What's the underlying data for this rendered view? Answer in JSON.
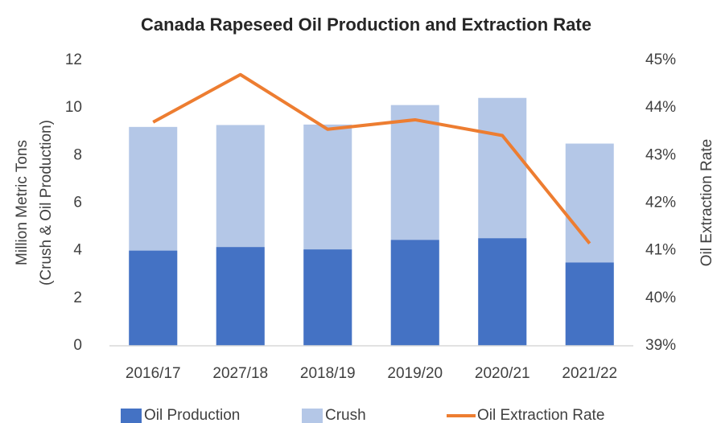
{
  "chart_data": {
    "type": "bar",
    "title": "Canada Rapeseed Oil Production and Extraction Rate",
    "y_label": [
      "Million Metric Tons",
      "(Crush & Oil Production)"
    ],
    "y2_label": "Oil Extraction Rate",
    "categories": [
      "2016/17",
      "2027/18",
      "2018/19",
      "2019/20",
      "2020/21",
      "2021/22"
    ],
    "series": [
      {
        "name": "Oil Production",
        "type": "bar",
        "color": "#4472c4",
        "values": [
          4.0,
          4.15,
          4.05,
          4.45,
          4.52,
          3.5
        ]
      },
      {
        "name": "Crush",
        "type": "bar",
        "color": "#b4c7e7",
        "values": [
          9.2,
          9.28,
          9.3,
          10.12,
          10.42,
          8.5
        ]
      },
      {
        "name": "Oil Extraction Rate",
        "type": "line",
        "axis": "y2",
        "color": "#ed7d31",
        "values": [
          43.7,
          44.7,
          43.55,
          43.75,
          43.42,
          41.15
        ]
      }
    ],
    "ylim": [
      0,
      12
    ],
    "yticks": [
      0,
      2,
      4,
      6,
      8,
      10,
      12
    ],
    "y2lim": [
      39,
      45
    ],
    "y2ticks": [
      {
        "value": 39,
        "label": "39%"
      },
      {
        "value": 40,
        "label": "40%"
      },
      {
        "value": 41,
        "label": "41%"
      },
      {
        "value": 42,
        "label": "42%"
      },
      {
        "value": 43,
        "label": "43%"
      },
      {
        "value": 44,
        "label": "44%"
      },
      {
        "value": 45,
        "label": "45%"
      }
    ],
    "legend": "bottom"
  }
}
